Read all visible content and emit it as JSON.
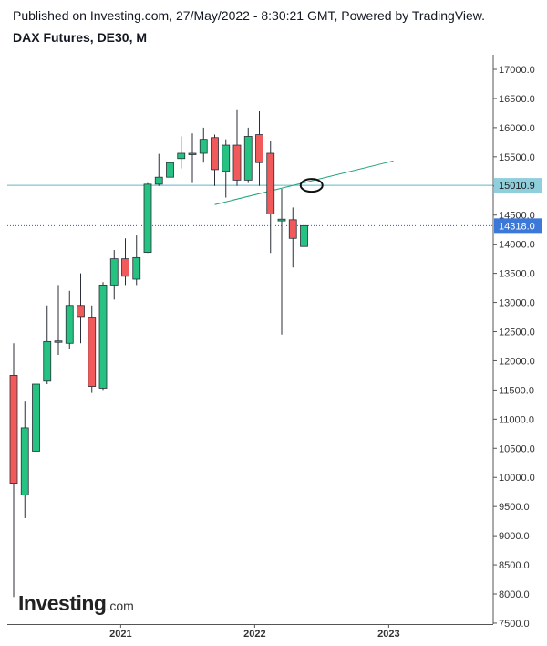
{
  "header": {
    "published": "Published on Investing.com, 27/May/2022 - 8:30:21 GMT, Powered by TradingView.",
    "title": "DAX Futures, DE30, M"
  },
  "logo": {
    "brand": "Investing",
    "suffix": ".com"
  },
  "colors": {
    "up": "#26c281",
    "down": "#f05a5a",
    "wick": "#2a2e39",
    "hline_level": "#5bb8c9",
    "current_price_tag": "#3c78d8",
    "trendline": "#1fa37a"
  },
  "chart_data": {
    "type": "candlestick",
    "title": "DAX Futures, DE30, M",
    "timeframe": "M",
    "x_ticks": [
      "2021",
      "2022",
      "2023"
    ],
    "y_ticks": [
      "17000.0",
      "16500.0",
      "16000.0",
      "15500.0",
      "15000.0",
      "14500.0",
      "14000.0",
      "13500.0",
      "13000.0",
      "12500.0",
      "12000.0",
      "11500.0",
      "11000.0",
      "10500.0",
      "10000.0",
      "9500.0",
      "9000.0",
      "8500.0",
      "8000.0",
      "7500.0"
    ],
    "ylim": [
      7500,
      17400
    ],
    "grid": false,
    "candles": [
      {
        "date": "2020-03",
        "open": 11750,
        "high": 12300,
        "low": 7950,
        "close": 9900
      },
      {
        "date": "2020-04",
        "open": 9700,
        "high": 11300,
        "low": 9300,
        "close": 10850
      },
      {
        "date": "2020-05",
        "open": 10450,
        "high": 11850,
        "low": 10200,
        "close": 11600
      },
      {
        "date": "2020-06",
        "open": 11650,
        "high": 12950,
        "low": 11600,
        "close": 12330
      },
      {
        "date": "2020-07",
        "open": 12320,
        "high": 13300,
        "low": 12100,
        "close": 12340
      },
      {
        "date": "2020-08",
        "open": 12300,
        "high": 13200,
        "low": 12200,
        "close": 12950
      },
      {
        "date": "2020-09",
        "open": 12950,
        "high": 13500,
        "low": 12300,
        "close": 12760
      },
      {
        "date": "2020-10",
        "open": 12750,
        "high": 12950,
        "low": 11450,
        "close": 11560
      },
      {
        "date": "2020-11",
        "open": 11530,
        "high": 13350,
        "low": 11500,
        "close": 13300
      },
      {
        "date": "2020-12",
        "open": 13300,
        "high": 13900,
        "low": 13050,
        "close": 13750
      },
      {
        "date": "2021-01",
        "open": 13750,
        "high": 14100,
        "low": 13300,
        "close": 13450
      },
      {
        "date": "2021-02",
        "open": 13400,
        "high": 14150,
        "low": 13300,
        "close": 13770
      },
      {
        "date": "2021-03",
        "open": 13860,
        "high": 15050,
        "low": 13850,
        "close": 15030
      },
      {
        "date": "2021-04",
        "open": 15030,
        "high": 15550,
        "low": 15000,
        "close": 15150
      },
      {
        "date": "2021-05",
        "open": 15150,
        "high": 15600,
        "low": 14850,
        "close": 15400
      },
      {
        "date": "2021-06",
        "open": 15470,
        "high": 15850,
        "low": 15300,
        "close": 15560
      },
      {
        "date": "2021-07",
        "open": 15550,
        "high": 15900,
        "low": 15050,
        "close": 15560
      },
      {
        "date": "2021-08",
        "open": 15560,
        "high": 16000,
        "low": 15400,
        "close": 15800
      },
      {
        "date": "2021-09",
        "open": 15830,
        "high": 15880,
        "low": 15000,
        "close": 15280
      },
      {
        "date": "2021-10",
        "open": 15250,
        "high": 15800,
        "low": 14800,
        "close": 15700
      },
      {
        "date": "2021-11",
        "open": 15700,
        "high": 16300,
        "low": 15000,
        "close": 15100
      },
      {
        "date": "2021-12",
        "open": 15100,
        "high": 16000,
        "low": 15050,
        "close": 15850
      },
      {
        "date": "2022-01",
        "open": 15880,
        "high": 16280,
        "low": 15000,
        "close": 15400
      },
      {
        "date": "2022-02",
        "open": 15560,
        "high": 15770,
        "low": 13850,
        "close": 14520
      },
      {
        "date": "2022-03",
        "open": 14400,
        "high": 14950,
        "low": 12450,
        "close": 14430
      },
      {
        "date": "2022-04",
        "open": 14420,
        "high": 14630,
        "low": 13600,
        "close": 14100
      },
      {
        "date": "2022-05",
        "open": 13960,
        "high": 14330,
        "low": 13280,
        "close": 14318
      }
    ],
    "level_line": {
      "value": 15010.9,
      "label": "15010.9"
    },
    "last_price": {
      "value": 14318.0,
      "label": "14318.0"
    },
    "trendline": {
      "start": {
        "date": "2021-09",
        "value": 14680
      },
      "end": {
        "date": "2023-01",
        "value": 15430
      }
    },
    "marker": {
      "type": "ellipse",
      "date": "2022-06",
      "value": 15010
    }
  }
}
